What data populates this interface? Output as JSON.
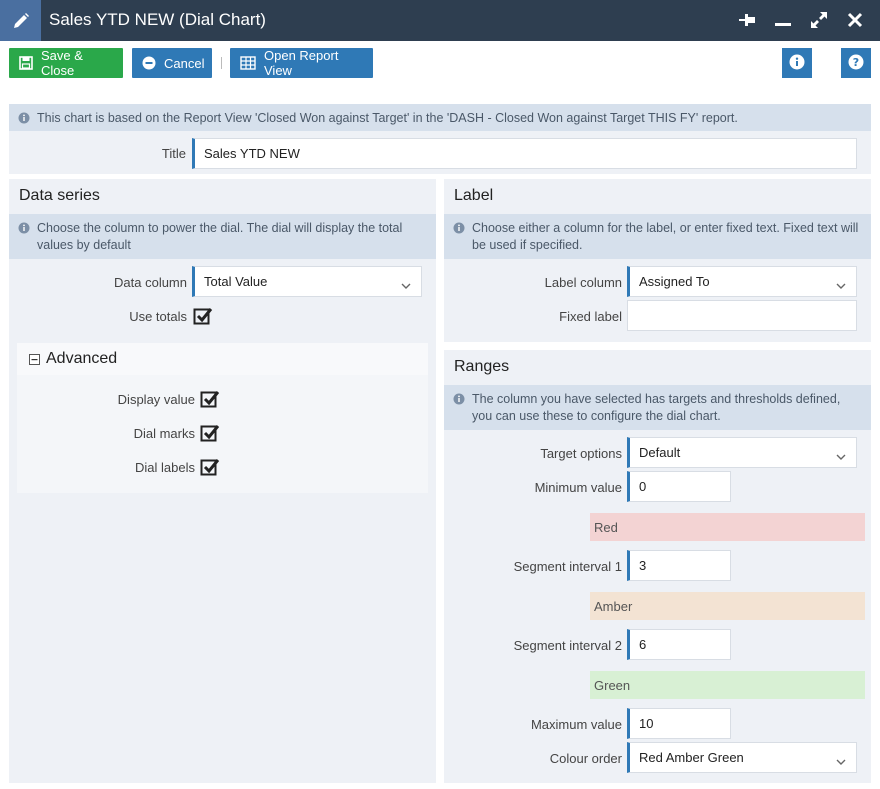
{
  "window": {
    "title": "Sales YTD NEW (Dial Chart)",
    "icons": [
      "pencil-icon",
      "pin-icon",
      "minimize-icon",
      "expand-icon",
      "close-icon"
    ]
  },
  "toolbar": {
    "save_label": "Save & Close",
    "cancel_label": "Cancel",
    "open_report_label": "Open Report View"
  },
  "info_banner": "This chart is based on the Report View 'Closed Won against Target' in the 'DASH - Closed Won against Target THIS FY' report.",
  "title_field": {
    "label": "Title",
    "value": "Sales YTD NEW"
  },
  "data_series": {
    "heading": "Data series",
    "info": "Choose the column to power the dial. The dial will display the total values by default",
    "data_column_label": "Data column",
    "data_column_value": "Total Value",
    "use_totals_label": "Use totals",
    "use_totals_checked": true,
    "advanced": {
      "heading": "Advanced",
      "display_value_label": "Display value",
      "dial_marks_label": "Dial marks",
      "dial_labels_label": "Dial labels"
    }
  },
  "label_section": {
    "heading": "Label",
    "info": "Choose either a column for the label, or enter fixed text. Fixed text will be used if specified.",
    "label_column_label": "Label column",
    "label_column_value": "Assigned To",
    "fixed_label_label": "Fixed label",
    "fixed_label_value": ""
  },
  "ranges": {
    "heading": "Ranges",
    "info": "The column you have selected has targets and thresholds defined, you can use these to configure the dial chart.",
    "target_options_label": "Target options",
    "target_options_value": "Default",
    "minimum_label": "Minimum value",
    "minimum_value": "0",
    "red_label": "Red",
    "segment1_label": "Segment interval 1",
    "segment1_value": "3",
    "amber_label": "Amber",
    "segment2_label": "Segment interval 2",
    "segment2_value": "6",
    "green_label": "Green",
    "maximum_label": "Maximum value",
    "maximum_value": "10",
    "colour_order_label": "Colour order",
    "colour_order_value": "Red Amber Green"
  },
  "colors": {
    "titlebar": "#2e3e50",
    "accent_blue": "#2f79b6",
    "save_green": "#2aa84a",
    "red_band": "#f3d3d3",
    "amber_band": "#f3e3d3",
    "green_band": "#d8f0d4"
  }
}
